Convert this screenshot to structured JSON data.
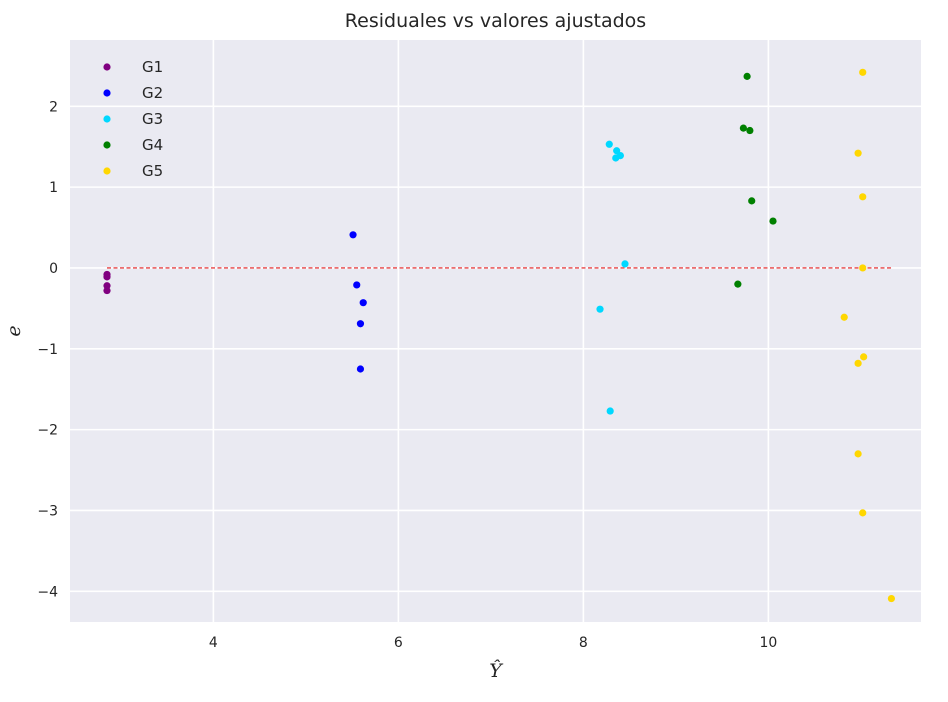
{
  "chart_data": {
    "type": "scatter",
    "title": "Residuales vs valores ajustados",
    "xlabel": "Ŷ",
    "ylabel": "e",
    "xlim": [
      2.45,
      11.65
    ],
    "ylim": [
      -4.38,
      2.82
    ],
    "xticks": [
      4,
      6,
      8,
      10
    ],
    "xtick_labels": [
      "4",
      "6",
      "8",
      "10"
    ],
    "yticks": [
      -4,
      -3,
      -2,
      -1,
      0,
      1,
      2
    ],
    "ytick_labels": [
      "−4",
      "−3",
      "−2",
      "−1",
      "0",
      "1",
      "2"
    ],
    "grid": true,
    "background": "#eaeaf2",
    "legend_position": "top-left",
    "reference_line": {
      "y": 0,
      "x_from": 2.85,
      "x_to": 11.35,
      "color": "#e31a1c",
      "style": "dashed"
    },
    "series": [
      {
        "name": "G1",
        "color": "#800080",
        "points": [
          [
            2.85,
            -0.08
          ],
          [
            2.85,
            -0.11
          ],
          [
            2.85,
            -0.22
          ],
          [
            2.85,
            -0.28
          ]
        ]
      },
      {
        "name": "G2",
        "color": "#0000ff",
        "points": [
          [
            5.51,
            0.41
          ],
          [
            5.55,
            -0.21
          ],
          [
            5.62,
            -0.43
          ],
          [
            5.59,
            -0.69
          ],
          [
            5.59,
            -1.25
          ]
        ]
      },
      {
        "name": "G3",
        "color": "#00d8ff",
        "points": [
          [
            8.28,
            1.53
          ],
          [
            8.36,
            1.45
          ],
          [
            8.35,
            1.36
          ],
          [
            8.4,
            1.39
          ],
          [
            8.45,
            0.05
          ],
          [
            8.18,
            -0.51
          ],
          [
            8.29,
            -1.77
          ]
        ]
      },
      {
        "name": "G4",
        "color": "#008000",
        "points": [
          [
            9.77,
            2.37
          ],
          [
            9.73,
            1.73
          ],
          [
            9.8,
            1.7
          ],
          [
            9.82,
            0.83
          ],
          [
            10.05,
            0.58
          ],
          [
            9.67,
            -0.2
          ]
        ]
      },
      {
        "name": "G5",
        "color": "#ffd700",
        "points": [
          [
            11.02,
            2.42
          ],
          [
            10.97,
            1.42
          ],
          [
            11.02,
            0.88
          ],
          [
            11.02,
            0.0
          ],
          [
            10.82,
            -0.61
          ],
          [
            11.03,
            -1.1
          ],
          [
            10.97,
            -1.18
          ],
          [
            10.97,
            -2.3
          ],
          [
            11.02,
            -3.03
          ],
          [
            11.33,
            -4.09
          ]
        ]
      }
    ]
  }
}
